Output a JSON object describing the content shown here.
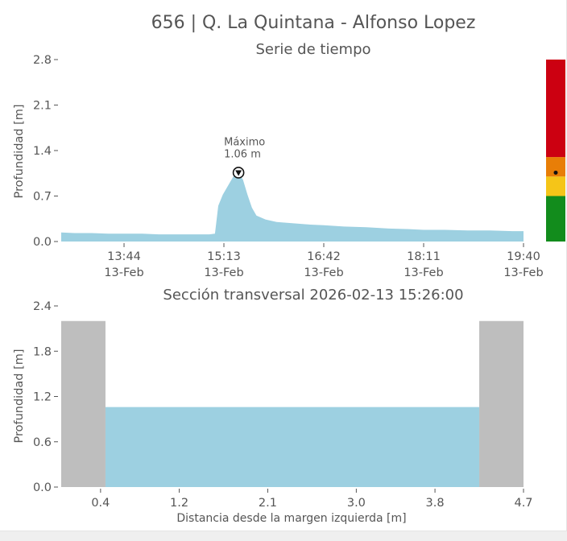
{
  "title": "656 | Q. La Quintana - Alfonso Lopez",
  "colors": {
    "water": "#9dd0e1",
    "bank": "#bebebe",
    "text": "#555555",
    "alert_red": "#cc0011",
    "alert_orange": "#e87e07",
    "alert_yellow": "#f5c518",
    "alert_green": "#128c1c"
  },
  "chart_data": [
    {
      "type": "area",
      "title": "Serie de tiempo",
      "ylabel": "Profundidad [m]",
      "xlabel": "",
      "ylim": [
        0,
        2.8
      ],
      "yticks": [
        "0.0",
        "0.7",
        "1.4",
        "2.1",
        "2.8"
      ],
      "xticks": [
        {
          "time": "13:44",
          "date": "13-Feb"
        },
        {
          "time": "15:13",
          "date": "13-Feb"
        },
        {
          "time": "16:42",
          "date": "13-Feb"
        },
        {
          "time": "18:11",
          "date": "13-Feb"
        },
        {
          "time": "19:40",
          "date": "13-Feb"
        }
      ],
      "x_range": [
        "2026-02-13 12:48",
        "2026-02-13 19:40"
      ],
      "series": [
        {
          "points": [
            [
              "12:48",
              0.14
            ],
            [
              "13:00",
              0.13
            ],
            [
              "13:15",
              0.13
            ],
            [
              "13:30",
              0.12
            ],
            [
              "13:44",
              0.12
            ],
            [
              "14:00",
              0.12
            ],
            [
              "14:15",
              0.11
            ],
            [
              "14:30",
              0.11
            ],
            [
              "14:45",
              0.11
            ],
            [
              "15:00",
              0.11
            ],
            [
              "15:05",
              0.12
            ],
            [
              "15:08",
              0.55
            ],
            [
              "15:12",
              0.72
            ],
            [
              "15:18",
              0.9
            ],
            [
              "15:22",
              1.02
            ],
            [
              "15:26",
              1.06
            ],
            [
              "15:30",
              0.95
            ],
            [
              "15:34",
              0.72
            ],
            [
              "15:38",
              0.52
            ],
            [
              "15:42",
              0.4
            ],
            [
              "15:50",
              0.34
            ],
            [
              "16:00",
              0.3
            ],
            [
              "16:15",
              0.28
            ],
            [
              "16:30",
              0.26
            ],
            [
              "16:42",
              0.25
            ],
            [
              "17:00",
              0.23
            ],
            [
              "17:20",
              0.22
            ],
            [
              "17:40",
              0.2
            ],
            [
              "18:00",
              0.19
            ],
            [
              "18:11",
              0.18
            ],
            [
              "18:30",
              0.18
            ],
            [
              "18:50",
              0.17
            ],
            [
              "19:10",
              0.17
            ],
            [
              "19:30",
              0.16
            ],
            [
              "19:40",
              0.16
            ]
          ]
        }
      ],
      "annotation": {
        "label": "Máximo",
        "value_text": "1.06 m",
        "time": "15:26",
        "value": 1.06
      },
      "alert_bar": {
        "levels": [
          {
            "from": 0.0,
            "to": 0.7,
            "color": "#128c1c"
          },
          {
            "from": 0.7,
            "to": 1.0,
            "color": "#f5c518"
          },
          {
            "from": 1.0,
            "to": 1.3,
            "color": "#e87e07"
          },
          {
            "from": 1.3,
            "to": 2.8,
            "color": "#cc0011"
          }
        ],
        "current": 1.06
      }
    },
    {
      "type": "area",
      "title": "Sección transversal 2026-02-13 15:26:00",
      "xlabel": "Distancia desde la margen izquierda [m]",
      "ylabel": "Profundidad [m]",
      "xlim": [
        0,
        4.7
      ],
      "ylim": [
        0,
        2.4
      ],
      "xticks": [
        "0.4",
        "1.2",
        "2.1",
        "3.0",
        "3.8",
        "4.7"
      ],
      "yticks": [
        "0.0",
        "0.6",
        "1.2",
        "1.8",
        "2.4"
      ],
      "banks": [
        {
          "x_from": 0.0,
          "x_to": 0.45,
          "height": 2.2
        },
        {
          "x_from": 4.25,
          "x_to": 4.7,
          "height": 2.2
        }
      ],
      "water_level": 1.06,
      "channel": {
        "x_from": 0.45,
        "x_to": 4.25
      }
    }
  ]
}
